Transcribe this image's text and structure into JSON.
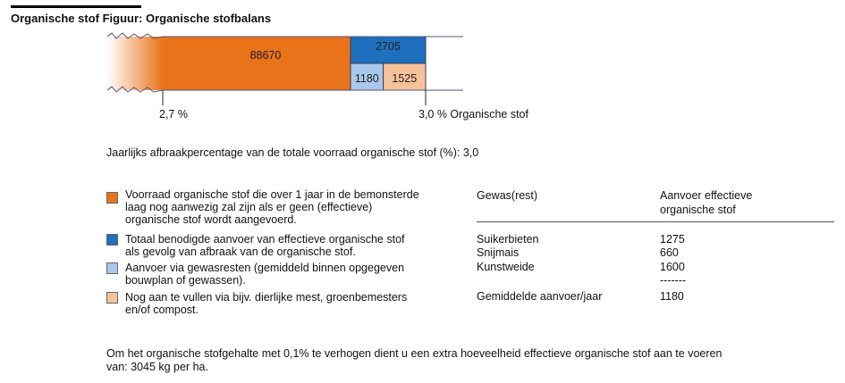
{
  "title": "Organische stof Figuur: Organische stofbalans",
  "chart_data": {
    "type": "bar",
    "stacked": true,
    "orientation": "horizontal",
    "segments": [
      {
        "id": "voorraad",
        "value": 88670,
        "color": "#E8731A"
      },
      {
        "id": "benodigd",
        "value": 2705,
        "color": "#1F6FBF"
      },
      {
        "id": "gewasresten",
        "value": 1180,
        "color": "#A8C8EC"
      },
      {
        "id": "aanvullen",
        "value": 1525,
        "color": "#F7C29A"
      }
    ],
    "labels": {
      "voorraad": "88670",
      "benodigd": "2705",
      "gewasresten": "1180",
      "aanvullen": "1525"
    },
    "x_range_percent": [
      2.7,
      3.0
    ],
    "tick_left": "2,7  %",
    "tick_right": "3,0 % Organische stof"
  },
  "afbraak_text": "Jaarlijks afbraakpercentage van de totale voorraad organische stof (%): 3,0",
  "legend": [
    {
      "color": "#E8731A",
      "lines": [
        "Voorraad organische stof die over 1 jaar in de bemonsterde",
        "laag nog aanwezig zal zijn als er geen (effectieve)",
        "organische stof wordt aangevoerd."
      ]
    },
    {
      "color": "#1F6FBF",
      "lines": [
        "Totaal benodigde aanvoer van effectieve organische stof",
        "als gevolg van afbraak van de organische stof."
      ]
    },
    {
      "color": "#A8C8EC",
      "lines": [
        "Aanvoer via gewasresten (gemiddeld binnen opgegeven",
        "bouwplan of gewassen)."
      ]
    },
    {
      "color": "#F7C29A",
      "lines": [
        "Nog aan te vullen via bijv. dierlijke mest, groenbemesters",
        "en/of compost."
      ]
    }
  ],
  "table": {
    "header_col1": "Gewas(rest)",
    "header_col2_line1": "Aanvoer effectieve",
    "header_col2_line2": "organische stof",
    "rows": [
      {
        "crop": "Suikerbieten",
        "value": "1275"
      },
      {
        "crop": "Snijmais",
        "value": "660"
      },
      {
        "crop": "Kunstweide",
        "value": "1600"
      }
    ],
    "separator": "-------",
    "avg_label": "Gemiddelde aanvoer/jaar",
    "avg_value": "1180"
  },
  "footer_line1": "Om het organische stofgehalte met 0,1% te verhogen dient u een extra hoeveelheid effectieve organische stof aan te voeren",
  "footer_line2": "van: 3045 kg per ha."
}
